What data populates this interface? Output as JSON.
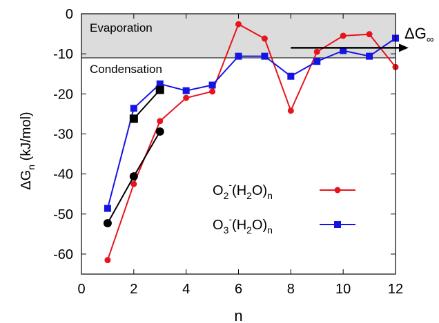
{
  "chart_data": {
    "type": "line",
    "xlabel": "n",
    "ylabel_main": "ΔG",
    "ylabel_sub": "n",
    "ylabel_unit": " (kJ/mol)",
    "xlim": [
      0,
      12
    ],
    "ylim": [
      -65,
      0
    ],
    "xticks": [
      0,
      2,
      4,
      6,
      8,
      10,
      12
    ],
    "yticks": [
      0,
      -10,
      -20,
      -30,
      -40,
      -50,
      -60
    ],
    "regions": {
      "evaporation_label": "Evaporation",
      "condensation_label": "Condensation",
      "threshold": -11,
      "shade_color": "#dcdcdc"
    },
    "annotation": {
      "label_main": "ΔG",
      "label_sub": "∞",
      "y": -8.5,
      "x_start": 8,
      "x_end": 12.5
    },
    "series": [
      {
        "name_parts": [
          "O",
          "2",
          "-",
          "(H",
          "2",
          "O)",
          "n"
        ],
        "color": "#e8141c",
        "marker": "circle",
        "x": [
          1,
          2,
          3,
          4,
          5,
          6,
          7,
          8,
          9,
          10,
          11,
          12
        ],
        "y": [
          -61.5,
          -42.5,
          -26.8,
          -21.0,
          -19.4,
          -2.6,
          -6.2,
          -24.2,
          -9.5,
          -5.5,
          -5.1,
          -13.3
        ]
      },
      {
        "name_parts": [
          "O",
          "3",
          "-",
          "(H",
          "2",
          "O)",
          "n"
        ],
        "color": "#1414e6",
        "marker": "square",
        "x": [
          1,
          2,
          3,
          4,
          5,
          6,
          7,
          8,
          9,
          10,
          11,
          12
        ],
        "y": [
          -48.6,
          -23.6,
          -17.5,
          -19.2,
          -17.8,
          -10.6,
          -10.6,
          -15.6,
          -11.9,
          -9.2,
          -10.6,
          -6.1
        ]
      },
      {
        "name_parts": [],
        "color": "#000000",
        "marker": "circle",
        "x": [
          1,
          2,
          3
        ],
        "y": [
          -52.3,
          -40.6,
          -29.4
        ]
      },
      {
        "name_parts": [],
        "color": "#000000",
        "marker": "square",
        "x": [
          2,
          3
        ],
        "y": [
          -26.2,
          -19.0
        ]
      }
    ]
  }
}
